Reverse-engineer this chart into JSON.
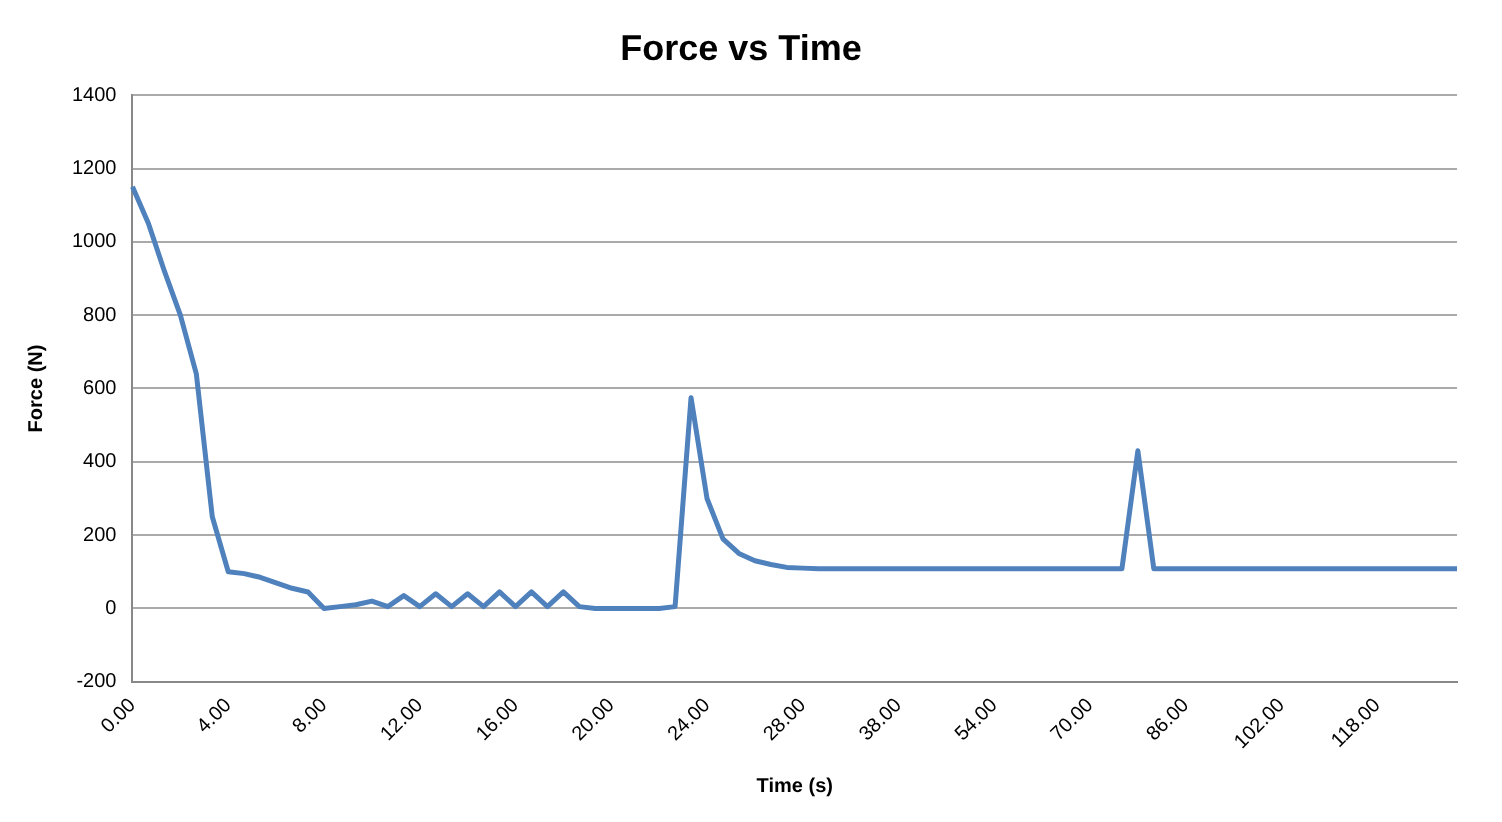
{
  "chart_data": {
    "type": "line",
    "title": "Force vs Time",
    "xlabel": "Time (s)",
    "ylabel": "Force (N)",
    "categories": [
      "0.00",
      null,
      null,
      null,
      null,
      null,
      "4.00",
      null,
      null,
      null,
      null,
      null,
      "8.00",
      null,
      null,
      null,
      null,
      null,
      "12.00",
      null,
      null,
      null,
      null,
      null,
      "16.00",
      null,
      null,
      null,
      null,
      null,
      "20.00",
      null,
      null,
      null,
      null,
      null,
      "24.00",
      null,
      null,
      null,
      null,
      null,
      "28.00",
      null,
      null,
      null,
      null,
      null,
      "38.00",
      null,
      null,
      null,
      null,
      null,
      "54.00",
      null,
      null,
      null,
      null,
      null,
      "70.00",
      null,
      null,
      null,
      null,
      null,
      "86.00",
      null,
      null,
      null,
      null,
      null,
      "102.00",
      null,
      null,
      null,
      null,
      null,
      "118.00",
      null,
      null,
      null,
      null,
      null
    ],
    "series": [
      {
        "color": "#4f81bd",
        "values": [
          1150,
          1050,
          920,
          800,
          640,
          250,
          100,
          95,
          85,
          70,
          55,
          45,
          0,
          5,
          10,
          20,
          5,
          35,
          5,
          40,
          5,
          40,
          5,
          45,
          5,
          45,
          5,
          45,
          5,
          0,
          0,
          0,
          0,
          0,
          5,
          575,
          300,
          190,
          150,
          130,
          120,
          112,
          110,
          108,
          108,
          108,
          108,
          108,
          108,
          108,
          108,
          108,
          108,
          108,
          108,
          108,
          108,
          108,
          108,
          108,
          108,
          108,
          108,
          430,
          108,
          108,
          108,
          108,
          108,
          108,
          108,
          108,
          108,
          108,
          108,
          108,
          108,
          108,
          108,
          108,
          108,
          108,
          108,
          108
        ]
      }
    ],
    "ylim": [
      -200,
      1400
    ],
    "yticks": [
      -200,
      0,
      200,
      400,
      600,
      800,
      1000,
      1200,
      1400
    ],
    "grid": "y",
    "legend": false,
    "marker": "none",
    "line_style": "solid"
  }
}
